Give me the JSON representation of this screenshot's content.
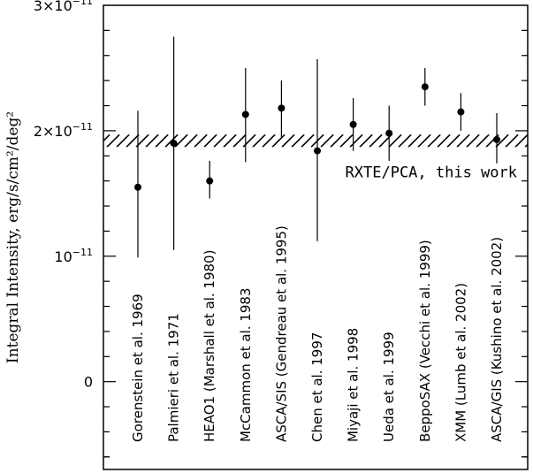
{
  "chart_data": {
    "type": "scatter",
    "title": "",
    "xlabel": "",
    "ylabel": "Integral Intensity, erg/s/cm²/deg²",
    "ylim": [
      -7e-12,
      3e-11
    ],
    "yticks": [
      {
        "value": 0,
        "label": "0"
      },
      {
        "value": 1e-11,
        "label_base": "10",
        "label_exp": "−11"
      },
      {
        "value": 2e-11,
        "label_base": "2×10",
        "label_exp": "−11"
      },
      {
        "value": 3e-11,
        "label_base": "3×10",
        "label_exp": "−11"
      }
    ],
    "reference": {
      "label": "RXTE/PCA, this work",
      "low": 1.87e-11,
      "high": 1.97e-11
    },
    "points": [
      {
        "label": "Gorenstein et al. 1969",
        "y": 1.55e-11,
        "ylow": 9.9e-12,
        "yhigh": 2.16e-11
      },
      {
        "label": "Palmieri et al. 1971",
        "y": 1.9e-11,
        "ylow": 1.05e-11,
        "yhigh": 2.75e-11
      },
      {
        "label": "HEAO1 (Marshall et al. 1980)",
        "y": 1.6e-11,
        "ylow": 1.46e-11,
        "yhigh": 1.76e-11
      },
      {
        "label": "McCammon et al. 1983",
        "y": 2.13e-11,
        "ylow": 1.75e-11,
        "yhigh": 2.5e-11
      },
      {
        "label": "ASCA/SIS (Gendreau et al. 1995)",
        "y": 2.18e-11,
        "ylow": 1.95e-11,
        "yhigh": 2.4e-11
      },
      {
        "label": "Chen et al. 1997",
        "y": 1.84e-11,
        "ylow": 1.12e-11,
        "yhigh": 2.57e-11
      },
      {
        "label": "Miyaji et al. 1998",
        "y": 2.05e-11,
        "ylow": 1.84e-11,
        "yhigh": 2.26e-11
      },
      {
        "label": "Ueda et al. 1999",
        "y": 1.98e-11,
        "ylow": 1.76e-11,
        "yhigh": 2.2e-11
      },
      {
        "label": "BeppoSAX (Vecchi et al. 1999)",
        "y": 2.35e-11,
        "ylow": 2.2e-11,
        "yhigh": 2.5e-11
      },
      {
        "label": "XMM (Lumb et al. 2002)",
        "y": 2.15e-11,
        "ylow": 2e-11,
        "yhigh": 2.3e-11
      },
      {
        "label": "ASCA/GIS (Kushino et al. 2002)",
        "y": 1.93e-11,
        "ylow": 1.74e-11,
        "yhigh": 2.14e-11
      }
    ],
    "grid": false,
    "legend": "none"
  }
}
